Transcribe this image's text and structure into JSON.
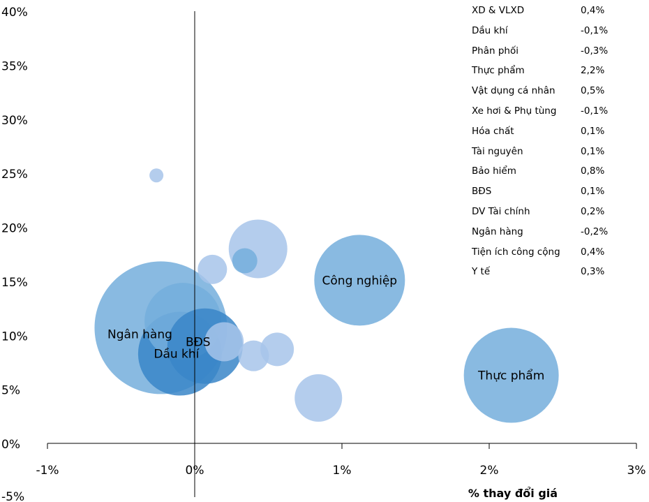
{
  "chart_data": {
    "type": "bubble",
    "xlabel": "% thay đổi giá",
    "ylabel": "",
    "xlim": [
      -1,
      3
    ],
    "ylim": [
      -5,
      40
    ],
    "x_ticks": [
      "-1%",
      "0%",
      "1%",
      "2%",
      "3%"
    ],
    "y_ticks": [
      "40%",
      "35%",
      "30%",
      "25%",
      "20%",
      "15%",
      "10%",
      "5%",
      "0%",
      "-5%"
    ],
    "colors": {
      "dark": "#3a86c8",
      "medium": "#74aedc",
      "light": "#a7c4ea"
    },
    "bubbles": [
      {
        "label": "Ngân hàng",
        "x": -0.23,
        "y": 10.7,
        "size": 95,
        "tone": "medium"
      },
      {
        "label": "",
        "x": -0.08,
        "y": 11.3,
        "size": 55,
        "tone": "medium"
      },
      {
        "label": "Dầu khí",
        "x": -0.1,
        "y": 8.3,
        "size": 60,
        "tone": "dark"
      },
      {
        "label": "BĐS",
        "x": 0.07,
        "y": 9.0,
        "size": 54,
        "tone": "dark"
      },
      {
        "label": "",
        "x": 0.2,
        "y": 9.4,
        "size": 28,
        "tone": "light"
      },
      {
        "label": "",
        "x": 0.4,
        "y": 8.1,
        "size": 22,
        "tone": "light"
      },
      {
        "label": "",
        "x": 0.56,
        "y": 8.7,
        "size": 24,
        "tone": "light"
      },
      {
        "label": "",
        "x": 0.12,
        "y": 16.1,
        "size": 21,
        "tone": "light"
      },
      {
        "label": "",
        "x": 0.34,
        "y": 16.9,
        "size": 18,
        "tone": "medium"
      },
      {
        "label": "",
        "x": 0.43,
        "y": 18.0,
        "size": 42,
        "tone": "light"
      },
      {
        "label": "",
        "x": 0.84,
        "y": 4.2,
        "size": 34,
        "tone": "light"
      },
      {
        "label": "",
        "x": -0.26,
        "y": 24.8,
        "size": 10,
        "tone": "light"
      },
      {
        "label": "Công nghiệp",
        "x": 1.12,
        "y": 15.1,
        "size": 65,
        "tone": "medium"
      },
      {
        "label": "Thực phẩm",
        "x": 2.15,
        "y": 6.3,
        "size": 68,
        "tone": "medium"
      }
    ],
    "table": [
      {
        "sector": "XD & VLXD",
        "change": "0,4%"
      },
      {
        "sector": "Dầu khí",
        "change": "-0,1%"
      },
      {
        "sector": "Phân phối",
        "change": "-0,3%"
      },
      {
        "sector": "Thực phẩm",
        "change": "2,2%"
      },
      {
        "sector": "Vật dụng cá nhân",
        "change": "0,5%"
      },
      {
        "sector": "Xe hơi & Phụ tùng",
        "change": "-0,1%"
      },
      {
        "sector": "Hóa chất",
        "change": "0,1%"
      },
      {
        "sector": "Tài nguyên",
        "change": "0,1%"
      },
      {
        "sector": "Bảo hiểm",
        "change": "0,8%"
      },
      {
        "sector": "BĐS",
        "change": "0,1%"
      },
      {
        "sector": "DV Tài chính",
        "change": "0,2%"
      },
      {
        "sector": "Ngân hàng",
        "change": "-0,2%"
      },
      {
        "sector": "Tiện ích công cộng",
        "change": "0,4%"
      },
      {
        "sector": "Y tế",
        "change": "0,3%"
      }
    ]
  }
}
